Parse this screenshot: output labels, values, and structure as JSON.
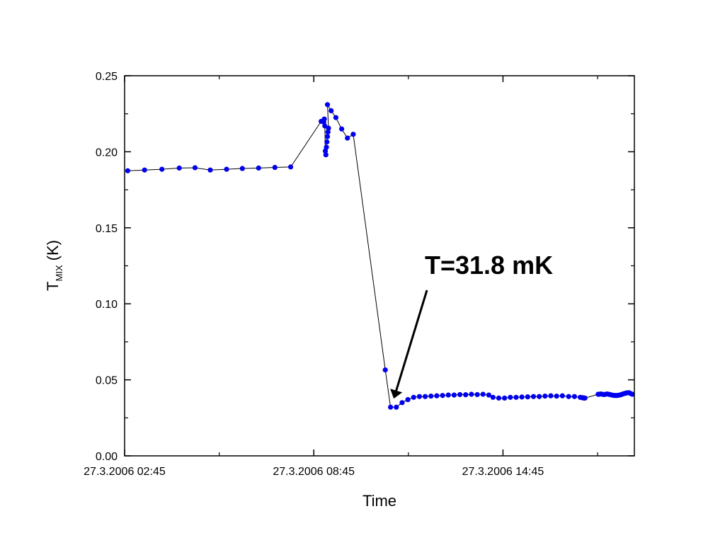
{
  "chart_data": {
    "type": "line",
    "xlabel": "Time",
    "ylabel": {
      "base": "T",
      "sub": "MIX",
      "unit": "(K)"
    },
    "ylim": [
      0,
      0.25
    ],
    "yticks": [
      "0.00",
      "0.05",
      "0.10",
      "0.15",
      "0.20",
      "0.25"
    ],
    "xlim": [
      "27.3.2006 02:45",
      "27.3.2006 18:55"
    ],
    "xticks": [
      "27.3.2006 02:45",
      "27.3.2006 08:45",
      "27.3.2006 14:45"
    ],
    "grid": false,
    "marker_color": "#0000ee",
    "line_color": "#000000",
    "annotation": {
      "text": "T=31.8 mK",
      "target_x": "27.3.2006 11:22",
      "target_y": 0.032
    },
    "series": [
      {
        "points": [
          [
            "27.3.2006 02:51",
            0.1875
          ],
          [
            "27.3.2006 03:23",
            0.188
          ],
          [
            "27.3.2006 03:56",
            0.1885
          ],
          [
            "27.3.2006 04:29",
            0.1893
          ],
          [
            "27.3.2006 04:59",
            0.1895
          ],
          [
            "27.3.2006 05:28",
            0.188
          ],
          [
            "27.3.2006 05:59",
            0.1885
          ],
          [
            "27.3.2006 06:29",
            0.189
          ],
          [
            "27.3.2006 07:00",
            0.1893
          ],
          [
            "27.3.2006 07:31",
            0.1897
          ],
          [
            "27.3.2006 08:01",
            0.19
          ],
          [
            "27.3.2006 08:59",
            0.22
          ],
          [
            "27.3.2006 09:04",
            0.2195
          ],
          [
            "27.3.2006 09:05",
            0.2215
          ],
          [
            "27.3.2006 09:06",
            0.217
          ],
          [
            "27.3.2006 09:07",
            0.2005
          ],
          [
            "27.3.2006 09:08",
            0.198
          ],
          [
            "27.3.2006 09:09",
            0.203
          ],
          [
            "27.3.2006 09:10",
            0.2065
          ],
          [
            "27.3.2006 09:11",
            0.21
          ],
          [
            "27.3.2006 09:12",
            0.213
          ],
          [
            "27.3.2006 09:13",
            0.2155
          ],
          [
            "27.3.2006 09:11",
            0.231
          ],
          [
            "27.3.2006 09:18",
            0.227
          ],
          [
            "27.3.2006 09:27",
            0.2225
          ],
          [
            "27.3.2006 09:38",
            0.215
          ],
          [
            "27.3.2006 09:49",
            0.209
          ],
          [
            "27.3.2006 10:00",
            0.2115
          ],
          [
            "27.3.2006 11:01",
            0.0565
          ],
          [
            "27.3.2006 11:11",
            0.032
          ],
          [
            "27.3.2006 11:22",
            0.032
          ],
          [
            "27.3.2006 11:33",
            0.035
          ],
          [
            "27.3.2006 11:44",
            0.037
          ],
          [
            "27.3.2006 11:55",
            0.0385
          ],
          [
            "27.3.2006 12:06",
            0.039
          ],
          [
            "27.3.2006 12:17",
            0.039
          ],
          [
            "27.3.2006 12:28",
            0.0393
          ],
          [
            "27.3.2006 12:39",
            0.0395
          ],
          [
            "27.3.2006 12:50",
            0.0397
          ],
          [
            "27.3.2006 13:01",
            0.04
          ],
          [
            "27.3.2006 13:12",
            0.04
          ],
          [
            "27.3.2006 13:23",
            0.0403
          ],
          [
            "27.3.2006 13:34",
            0.0402
          ],
          [
            "27.3.2006 13:45",
            0.0405
          ],
          [
            "27.3.2006 13:56",
            0.0403
          ],
          [
            "27.3.2006 14:07",
            0.0405
          ],
          [
            "27.3.2006 14:18",
            0.04
          ],
          [
            "27.3.2006 14:26",
            0.0385
          ],
          [
            "27.3.2006 14:37",
            0.038
          ],
          [
            "27.3.2006 14:48",
            0.038
          ],
          [
            "27.3.2006 14:59",
            0.0385
          ],
          [
            "27.3.2006 15:10",
            0.0385
          ],
          [
            "27.3.2006 15:21",
            0.0387
          ],
          [
            "27.3.2006 15:32",
            0.0388
          ],
          [
            "27.3.2006 15:43",
            0.039
          ],
          [
            "27.3.2006 15:54",
            0.039
          ],
          [
            "27.3.2006 16:05",
            0.0393
          ],
          [
            "27.3.2006 16:16",
            0.0395
          ],
          [
            "27.3.2006 16:27",
            0.0393
          ],
          [
            "27.3.2006 16:38",
            0.0395
          ],
          [
            "27.3.2006 16:50",
            0.039
          ],
          [
            "27.3.2006 17:01",
            0.039
          ],
          [
            "27.3.2006 17:12",
            0.0385
          ],
          [
            "27.3.2006 17:15",
            0.0383
          ],
          [
            "27.3.2006 17:17",
            0.0382
          ],
          [
            "27.3.2006 17:19",
            0.038
          ],
          [
            "27.3.2006 17:21",
            0.038
          ],
          [
            "27.3.2006 17:46",
            0.0405
          ],
          [
            "27.3.2006 17:48",
            0.0405
          ],
          [
            "27.3.2006 17:51",
            0.0407
          ],
          [
            "27.3.2006 17:54",
            0.0405
          ],
          [
            "27.3.2006 17:57",
            0.0403
          ],
          [
            "27.3.2006 18:00",
            0.0405
          ],
          [
            "27.3.2006 18:03",
            0.0407
          ],
          [
            "27.3.2006 18:06",
            0.0405
          ],
          [
            "27.3.2006 18:09",
            0.0403
          ],
          [
            "27.3.2006 18:12",
            0.04
          ],
          [
            "27.3.2006 18:15",
            0.0398
          ],
          [
            "27.3.2006 18:18",
            0.0397
          ],
          [
            "27.3.2006 18:21",
            0.0397
          ],
          [
            "27.3.2006 18:24",
            0.0398
          ],
          [
            "27.3.2006 18:27",
            0.04
          ],
          [
            "27.3.2006 18:30",
            0.0403
          ],
          [
            "27.3.2006 18:33",
            0.0407
          ],
          [
            "27.3.2006 18:36",
            0.041
          ],
          [
            "27.3.2006 18:39",
            0.0413
          ],
          [
            "27.3.2006 18:42",
            0.0415
          ],
          [
            "27.3.2006 18:45",
            0.0415
          ],
          [
            "27.3.2006 18:48",
            0.041
          ],
          [
            "27.3.2006 18:51",
            0.0405
          ]
        ]
      }
    ]
  }
}
